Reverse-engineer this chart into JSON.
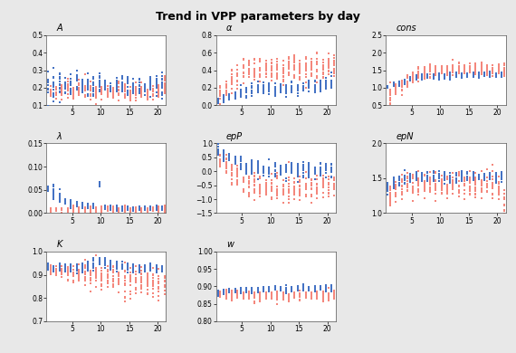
{
  "title": "Trend in VPP parameters by day",
  "n_days": 21,
  "subplots": [
    {
      "name": "A",
      "ylim": [
        0.1,
        0.5
      ],
      "yticks": [
        0.1,
        0.2,
        0.3,
        0.4,
        0.5
      ],
      "blue_center": [
        0.2,
        0.22,
        0.22,
        0.22,
        0.21,
        0.23,
        0.22,
        0.21,
        0.2,
        0.22,
        0.21,
        0.2,
        0.2,
        0.22,
        0.21,
        0.2,
        0.21,
        0.2,
        0.22,
        0.21,
        0.2
      ],
      "blue_spread": [
        0.12,
        0.1,
        0.08,
        0.07,
        0.06,
        0.07,
        0.06,
        0.06,
        0.06,
        0.06,
        0.05,
        0.05,
        0.05,
        0.05,
        0.05,
        0.05,
        0.05,
        0.05,
        0.06,
        0.05,
        0.07
      ],
      "red_center": [
        0.18,
        0.18,
        0.18,
        0.19,
        0.17,
        0.18,
        0.18,
        0.18,
        0.17,
        0.18,
        0.17,
        0.17,
        0.18,
        0.18,
        0.17,
        0.17,
        0.18,
        0.17,
        0.17,
        0.18,
        0.2
      ],
      "red_spread": [
        0.04,
        0.05,
        0.05,
        0.05,
        0.04,
        0.05,
        0.05,
        0.05,
        0.04,
        0.05,
        0.04,
        0.04,
        0.05,
        0.05,
        0.04,
        0.04,
        0.05,
        0.04,
        0.04,
        0.07,
        0.07
      ]
    },
    {
      "name": "α",
      "ylim": [
        0.0,
        0.8
      ],
      "yticks": [
        0.0,
        0.2,
        0.4,
        0.6,
        0.8
      ],
      "blue_center": [
        0.05,
        0.08,
        0.1,
        0.12,
        0.14,
        0.15,
        0.16,
        0.18,
        0.18,
        0.17,
        0.18,
        0.19,
        0.17,
        0.2,
        0.19,
        0.18,
        0.2,
        0.22,
        0.22,
        0.24,
        0.26
      ],
      "blue_spread": [
        0.03,
        0.04,
        0.05,
        0.06,
        0.07,
        0.08,
        0.08,
        0.07,
        0.06,
        0.07,
        0.07,
        0.06,
        0.07,
        0.07,
        0.06,
        0.07,
        0.07,
        0.07,
        0.08,
        0.08,
        0.09
      ],
      "red_center": [
        0.12,
        0.18,
        0.28,
        0.33,
        0.38,
        0.4,
        0.4,
        0.38,
        0.38,
        0.4,
        0.42,
        0.4,
        0.4,
        0.44,
        0.4,
        0.4,
        0.42,
        0.43,
        0.42,
        0.44,
        0.46
      ],
      "red_spread": [
        0.08,
        0.1,
        0.14,
        0.15,
        0.16,
        0.17,
        0.16,
        0.15,
        0.14,
        0.15,
        0.15,
        0.14,
        0.15,
        0.16,
        0.14,
        0.14,
        0.14,
        0.14,
        0.14,
        0.14,
        0.13
      ]
    },
    {
      "name": "cons",
      "ylim": [
        0.5,
        2.5
      ],
      "yticks": [
        0.5,
        1.0,
        1.5,
        2.0,
        2.5
      ],
      "blue_center": [
        1.02,
        1.07,
        1.12,
        1.18,
        1.22,
        1.26,
        1.29,
        1.31,
        1.33,
        1.34,
        1.35,
        1.35,
        1.36,
        1.36,
        1.37,
        1.38,
        1.38,
        1.38,
        1.38,
        1.38,
        1.38
      ],
      "blue_spread": [
        0.05,
        0.06,
        0.07,
        0.07,
        0.08,
        0.08,
        0.08,
        0.08,
        0.08,
        0.08,
        0.08,
        0.08,
        0.08,
        0.08,
        0.08,
        0.08,
        0.08,
        0.08,
        0.08,
        0.08,
        0.08
      ],
      "red_center": [
        0.82,
        0.95,
        1.08,
        1.18,
        1.28,
        1.38,
        1.42,
        1.44,
        1.46,
        1.49,
        1.51,
        1.51,
        1.5,
        1.51,
        1.52,
        1.52,
        1.52,
        1.52,
        1.52,
        1.52,
        1.53
      ],
      "red_spread": [
        0.28,
        0.22,
        0.22,
        0.2,
        0.2,
        0.2,
        0.2,
        0.18,
        0.18,
        0.18,
        0.18,
        0.18,
        0.18,
        0.18,
        0.18,
        0.18,
        0.18,
        0.18,
        0.18,
        0.18,
        0.22
      ]
    },
    {
      "name": "λ",
      "ylim": [
        0.0,
        0.15
      ],
      "yticks": [
        0.0,
        0.05,
        0.1,
        0.15
      ],
      "blue_center": [
        0.05,
        0.045,
        0.035,
        0.025,
        0.022,
        0.02,
        0.018,
        0.015,
        0.015,
        0.062,
        0.012,
        0.012,
        0.012,
        0.01,
        0.01,
        0.01,
        0.01,
        0.01,
        0.01,
        0.01,
        0.01
      ],
      "blue_spread": [
        0.01,
        0.012,
        0.01,
        0.008,
        0.008,
        0.007,
        0.006,
        0.006,
        0.006,
        0.006,
        0.005,
        0.005,
        0.005,
        0.005,
        0.005,
        0.005,
        0.005,
        0.005,
        0.005,
        0.005,
        0.005
      ],
      "red_center": [
        0.006,
        0.008,
        0.008,
        0.008,
        0.008,
        0.008,
        0.008,
        0.008,
        0.008,
        0.008,
        0.008,
        0.008,
        0.008,
        0.008,
        0.008,
        0.008,
        0.008,
        0.008,
        0.008,
        0.008,
        0.008
      ],
      "red_spread": [
        0.004,
        0.005,
        0.005,
        0.006,
        0.006,
        0.006,
        0.006,
        0.006,
        0.006,
        0.006,
        0.006,
        0.006,
        0.006,
        0.006,
        0.006,
        0.006,
        0.006,
        0.006,
        0.006,
        0.006,
        0.006
      ]
    },
    {
      "name": "epP",
      "ylim": [
        -1.5,
        1.0
      ],
      "yticks": [
        -1.5,
        -1.0,
        -0.5,
        0.0,
        0.5,
        1.0
      ],
      "blue_center": [
        0.7,
        0.6,
        0.5,
        0.38,
        0.28,
        0.18,
        0.1,
        0.08,
        0.05,
        0.05,
        0.05,
        0.02,
        0.05,
        0.05,
        0.05,
        0.05,
        0.05,
        0.05,
        0.05,
        0.05,
        0.05
      ],
      "blue_spread": [
        0.18,
        0.18,
        0.18,
        0.22,
        0.28,
        0.28,
        0.28,
        0.28,
        0.28,
        0.28,
        0.28,
        0.28,
        0.28,
        0.28,
        0.28,
        0.28,
        0.28,
        0.28,
        0.28,
        0.28,
        0.28
      ],
      "red_center": [
        0.32,
        0.18,
        -0.02,
        -0.22,
        -0.42,
        -0.52,
        -0.52,
        -0.62,
        -0.52,
        -0.52,
        -0.6,
        -0.62,
        -0.62,
        -0.62,
        -0.6,
        -0.6,
        -0.52,
        -0.52,
        -0.52,
        -0.52,
        -0.42
      ],
      "red_spread": [
        0.22,
        0.32,
        0.42,
        0.48,
        0.48,
        0.48,
        0.48,
        0.48,
        0.48,
        0.48,
        0.48,
        0.48,
        0.48,
        0.48,
        0.48,
        0.48,
        0.42,
        0.42,
        0.42,
        0.42,
        0.42
      ]
    },
    {
      "name": "epN",
      "ylim": [
        1.0,
        2.0
      ],
      "yticks": [
        1.0,
        1.5,
        2.0
      ],
      "blue_center": [
        1.38,
        1.42,
        1.46,
        1.5,
        1.52,
        1.52,
        1.52,
        1.52,
        1.52,
        1.52,
        1.52,
        1.52,
        1.52,
        1.52,
        1.52,
        1.52,
        1.52,
        1.52,
        1.52,
        1.52,
        1.52
      ],
      "blue_spread": [
        0.08,
        0.08,
        0.08,
        0.08,
        0.07,
        0.07,
        0.07,
        0.07,
        0.07,
        0.07,
        0.07,
        0.07,
        0.07,
        0.07,
        0.07,
        0.07,
        0.07,
        0.07,
        0.07,
        0.07,
        0.07
      ],
      "red_center": [
        1.28,
        1.33,
        1.38,
        1.4,
        1.4,
        1.4,
        1.4,
        1.4,
        1.4,
        1.4,
        1.4,
        1.4,
        1.4,
        1.4,
        1.4,
        1.4,
        1.4,
        1.4,
        1.4,
        1.4,
        1.12
      ],
      "red_spread": [
        0.2,
        0.18,
        0.18,
        0.18,
        0.18,
        0.18,
        0.18,
        0.18,
        0.18,
        0.18,
        0.18,
        0.18,
        0.18,
        0.18,
        0.18,
        0.18,
        0.18,
        0.18,
        0.18,
        0.18,
        0.32
      ]
    },
    {
      "name": "K",
      "ylim": [
        0.7,
        1.0
      ],
      "yticks": [
        0.7,
        0.8,
        0.9,
        1.0
      ],
      "blue_center": [
        0.935,
        0.932,
        0.932,
        0.932,
        0.93,
        0.93,
        0.93,
        0.94,
        0.95,
        0.958,
        0.952,
        0.942,
        0.94,
        0.94,
        0.94,
        0.93,
        0.93,
        0.93,
        0.93,
        0.93,
        0.93
      ],
      "blue_spread": [
        0.022,
        0.02,
        0.02,
        0.02,
        0.02,
        0.02,
        0.02,
        0.022,
        0.022,
        0.022,
        0.022,
        0.022,
        0.02,
        0.02,
        0.02,
        0.02,
        0.02,
        0.02,
        0.02,
        0.02,
        0.02
      ],
      "red_center": [
        0.93,
        0.92,
        0.912,
        0.91,
        0.9,
        0.9,
        0.9,
        0.9,
        0.898,
        0.898,
        0.895,
        0.882,
        0.88,
        0.878,
        0.872,
        0.87,
        0.87,
        0.87,
        0.87,
        0.862,
        0.86
      ],
      "red_spread": [
        0.03,
        0.03,
        0.03,
        0.032,
        0.042,
        0.042,
        0.042,
        0.052,
        0.062,
        0.062,
        0.062,
        0.062,
        0.062,
        0.062,
        0.062,
        0.062,
        0.062,
        0.062,
        0.062,
        0.062,
        0.062
      ]
    },
    {
      "name": "w",
      "ylim": [
        0.8,
        1.0
      ],
      "yticks": [
        0.8,
        0.85,
        0.9,
        0.95,
        1.0
      ],
      "blue_center": [
        0.882,
        0.885,
        0.888,
        0.888,
        0.888,
        0.888,
        0.888,
        0.888,
        0.89,
        0.892,
        0.892,
        0.892,
        0.892,
        0.892,
        0.895,
        0.895,
        0.895,
        0.895,
        0.895,
        0.895,
        0.895
      ],
      "blue_spread": [
        0.008,
        0.008,
        0.008,
        0.008,
        0.008,
        0.008,
        0.008,
        0.008,
        0.008,
        0.008,
        0.008,
        0.008,
        0.008,
        0.008,
        0.008,
        0.008,
        0.008,
        0.008,
        0.008,
        0.008,
        0.008
      ],
      "red_center": [
        0.88,
        0.876,
        0.876,
        0.876,
        0.873,
        0.873,
        0.873,
        0.874,
        0.874,
        0.874,
        0.873,
        0.873,
        0.873,
        0.874,
        0.874,
        0.874,
        0.873,
        0.874,
        0.873,
        0.873,
        0.873
      ],
      "red_spread": [
        0.01,
        0.015,
        0.015,
        0.012,
        0.015,
        0.015,
        0.015,
        0.012,
        0.012,
        0.012,
        0.015,
        0.015,
        0.015,
        0.012,
        0.012,
        0.012,
        0.015,
        0.012,
        0.015,
        0.015,
        0.012
      ]
    }
  ],
  "blue_color": "#4472C4",
  "red_color": "#F4877C",
  "n_pts": 15,
  "xticks": [
    5,
    10,
    15,
    20
  ],
  "bg_color": "#FFFFFF",
  "fig_color": "#E8E8E8"
}
